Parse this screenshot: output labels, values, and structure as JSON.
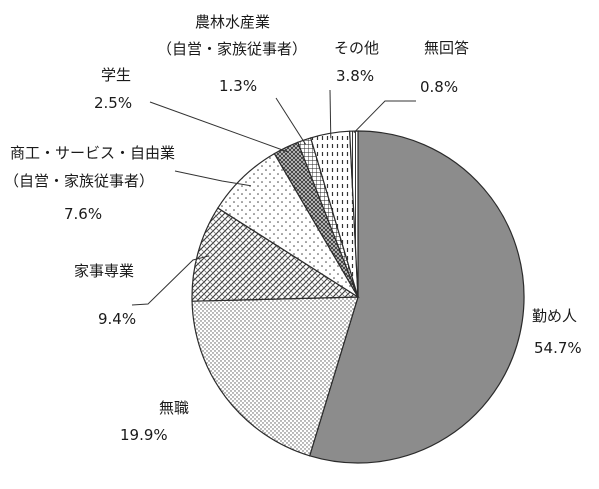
{
  "chart_data": {
    "type": "pie",
    "title": "",
    "start": "12 o'clock",
    "direction": "clockwise",
    "slices": [
      {
        "label": "勤め人",
        "value": 54.7,
        "value_label": "54.7%",
        "fill": "solid-gray",
        "color": "#8c8c8c"
      },
      {
        "label": "無職",
        "value": 19.9,
        "value_label": "19.9%",
        "fill": "fine-dots"
      },
      {
        "label": "家事専業",
        "value": 9.4,
        "value_label": "9.4%",
        "fill": "diagonal-crosshatch"
      },
      {
        "label_lines": [
          "商工・サービス・自由業",
          "（自営・家族従事者）"
        ],
        "value": 7.6,
        "value_label": "7.6%",
        "fill": "sparse-dots"
      },
      {
        "label": "学生",
        "value": 2.5,
        "value_label": "2.5%",
        "fill": "dense-crosshatch"
      },
      {
        "label_lines": [
          "農林水産業",
          "（自営・家族従事者）"
        ],
        "value": 1.3,
        "value_label": "1.3%",
        "fill": "grid"
      },
      {
        "label": "その他",
        "value": 3.8,
        "value_label": "3.8%",
        "fill": "dashed-vertical"
      },
      {
        "label": "無回答",
        "value": 0.8,
        "value_label": "0.8%",
        "fill": "vertical-lines"
      }
    ]
  }
}
